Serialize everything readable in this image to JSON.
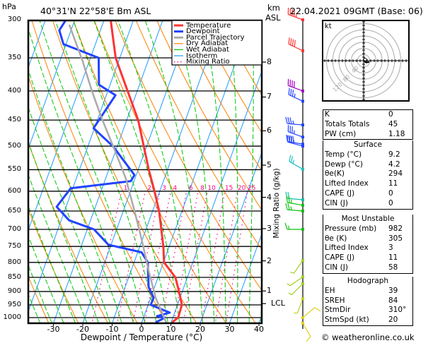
{
  "header": {
    "pressure_unit": "hPa",
    "location": "40°31'N 22°58'E Bm ASL",
    "km_label": "km",
    "asl_label": "ASL",
    "date": "22.04.2021 09GMT (Base: 06)"
  },
  "chart_data": {
    "type": "line",
    "title": "40°31'N 22°58'E Bm ASL",
    "xlabel": "Dewpoint / Temperature (°C)",
    "ylabel": "hPa",
    "y2label": "Mixing Ratio (g/kg)",
    "xlim": [
      -40,
      40
    ],
    "ylim": [
      1023,
      300
    ],
    "x_ticks": [
      "-30",
      "-20",
      "-10",
      "0",
      "10",
      "20",
      "30",
      "40"
    ],
    "x_tick_values": [
      -30,
      -20,
      -10,
      0,
      10,
      20,
      30,
      40
    ],
    "pressure_levels": [
      300,
      350,
      400,
      450,
      500,
      550,
      600,
      650,
      700,
      750,
      800,
      850,
      900,
      950,
      1000
    ],
    "pressure_labels": [
      "300",
      "350",
      "400",
      "450",
      "500",
      "550",
      "600",
      "650",
      "700",
      "750",
      "800",
      "850",
      "900",
      "950",
      "1000"
    ],
    "km_ticks": [
      {
        "label": "8",
        "p": 356
      },
      {
        "label": "7",
        "p": 410
      },
      {
        "label": "6",
        "p": 470
      },
      {
        "label": "5",
        "p": 540
      },
      {
        "label": "4",
        "p": 615
      },
      {
        "label": "3",
        "p": 698
      },
      {
        "label": "2",
        "p": 795
      },
      {
        "label": "1",
        "p": 898
      },
      {
        "label": "LCL",
        "p": 945
      }
    ],
    "legend": [
      {
        "label": "Temperature",
        "color": "#ff3333",
        "style": "thick"
      },
      {
        "label": "Dewpoint",
        "color": "#2244ff",
        "style": "thick"
      },
      {
        "label": "Parcel Trajectory",
        "color": "#aaaaaa",
        "style": "thick"
      },
      {
        "label": "Dry Adiabat",
        "color": "#ff8000",
        "style": "thin"
      },
      {
        "label": "Wet Adiabat",
        "color": "#00c800",
        "style": "thin"
      },
      {
        "label": "Isotherm",
        "color": "#1e9bff",
        "style": "thin"
      },
      {
        "label": "Mixing Ratio",
        "color": "#ff0080",
        "style": "dotted"
      }
    ],
    "legend_placement": "top-right",
    "mixing_ratio_labels": [
      "1",
      "2",
      "3",
      "4",
      "6",
      "8",
      "10",
      "15",
      "20",
      "25"
    ],
    "mixing_ratio_values": [
      1,
      2,
      3,
      4,
      6,
      8,
      10,
      15,
      20,
      25
    ],
    "series": [
      {
        "name": "Temperature",
        "color": "#ff3333",
        "points": [
          [
            1020,
            10.3
          ],
          [
            1000,
            11.8
          ],
          [
            950,
            11.5
          ],
          [
            900,
            8.9
          ],
          [
            850,
            5.9
          ],
          [
            800,
            0.2
          ],
          [
            750,
            -2.0
          ],
          [
            700,
            -4.8
          ],
          [
            650,
            -7.8
          ],
          [
            600,
            -11.8
          ],
          [
            550,
            -16.4
          ],
          [
            500,
            -21.0
          ],
          [
            450,
            -26.1
          ],
          [
            400,
            -33.3
          ],
          [
            350,
            -41.4
          ],
          [
            300,
            -47.8
          ]
        ]
      },
      {
        "name": "Dewpoint",
        "color": "#2244ff",
        "points": [
          [
            1020,
            4.7
          ],
          [
            1000,
            7.3
          ],
          [
            994,
            4.4
          ],
          [
            980,
            8.3
          ],
          [
            950,
            0.9
          ],
          [
            923,
            1.0
          ],
          [
            884,
            -2.0
          ],
          [
            826,
            -4.3
          ],
          [
            800,
            -5.3
          ],
          [
            768,
            -8.7
          ],
          [
            745,
            -20.9
          ],
          [
            700,
            -27.7
          ],
          [
            675,
            -37.3
          ],
          [
            639,
            -43.2
          ],
          [
            593,
            -40.7
          ],
          [
            576,
            -21.1
          ],
          [
            562,
            -20.6
          ],
          [
            501,
            -31.3
          ],
          [
            465,
            -40.3
          ],
          [
            407,
            -36.9
          ],
          [
            390,
            -43.8
          ],
          [
            350,
            -47.2
          ],
          [
            331,
            -60.9
          ],
          [
            313,
            -64.0
          ],
          [
            300,
            -63.0
          ]
        ]
      },
      {
        "name": "Parcel Trajectory",
        "color": "#aaaaaa",
        "points": [
          [
            1020,
            8.3
          ],
          [
            923,
            1.7
          ],
          [
            826,
            -4.1
          ],
          [
            752,
            -8.7
          ],
          [
            700,
            -12.3
          ],
          [
            628,
            -18.0
          ],
          [
            569,
            -23.2
          ],
          [
            501,
            -31.3
          ],
          [
            445,
            -39.0
          ],
          [
            401,
            -45.3
          ],
          [
            355,
            -52.2
          ],
          [
            306,
            -61.3
          ]
        ]
      }
    ],
    "wind_barbs": [
      {
        "p": 300,
        "dir": 290,
        "kt": 45,
        "color": "#ff3333"
      },
      {
        "p": 340,
        "dir": 295,
        "kt": 40,
        "color": "#ff3333"
      },
      {
        "p": 400,
        "dir": 290,
        "kt": 40,
        "color": "#a000c0"
      },
      {
        "p": 417,
        "dir": 295,
        "kt": 35,
        "color": "#2244ff"
      },
      {
        "p": 459,
        "dir": 275,
        "kt": 35,
        "color": "#2244ff"
      },
      {
        "p": 482,
        "dir": 290,
        "kt": 35,
        "color": "#2244ff"
      },
      {
        "p": 496,
        "dir": 280,
        "kt": 40,
        "color": "#2244ff"
      },
      {
        "p": 500,
        "dir": 285,
        "kt": 35,
        "color": "#2244ff"
      },
      {
        "p": 549,
        "dir": 300,
        "kt": 25,
        "color": "#20c0c0"
      },
      {
        "p": 621,
        "dir": 275,
        "kt": 20,
        "color": "#10c0a0"
      },
      {
        "p": 635,
        "dir": 280,
        "kt": 25,
        "color": "#10c010"
      },
      {
        "p": 650,
        "dir": 275,
        "kt": 25,
        "color": "#10c010"
      },
      {
        "p": 700,
        "dir": 270,
        "kt": 15,
        "color": "#10c010"
      },
      {
        "p": 794,
        "dir": 215,
        "kt": 5,
        "color": "#a0d020"
      },
      {
        "p": 848,
        "dir": 235,
        "kt": 5,
        "color": "#a0d020"
      },
      {
        "p": 872,
        "dir": 225,
        "kt": 5,
        "color": "#a0d020"
      },
      {
        "p": 926,
        "dir": 200,
        "kt": 5,
        "color": "#c0d020"
      },
      {
        "p": 1000,
        "dir": 50,
        "kt": 10,
        "color": "#e0d020"
      },
      {
        "p": 1023,
        "dir": 150,
        "kt": 10,
        "color": "#e0d020"
      }
    ],
    "hodograph": {
      "unit": "kt",
      "ring_labels": [
        "40",
        "80",
        "120"
      ],
      "ring_values": [
        40,
        80,
        120
      ],
      "trace_kt": [
        [
          0,
          0
        ],
        [
          3,
          -3
        ],
        [
          6,
          -5
        ],
        [
          10,
          -6
        ],
        [
          14,
          -5
        ],
        [
          18,
          -4
        ]
      ]
    }
  },
  "indices": {
    "rows": [
      {
        "label": "K",
        "value": "0"
      },
      {
        "label": "Totals Totals",
        "value": "45"
      },
      {
        "label": "PW (cm)",
        "value": "1.18"
      }
    ]
  },
  "surface": {
    "title": "Surface",
    "rows": [
      {
        "label": "Temp (°C)",
        "value": "9.2"
      },
      {
        "label": "Dewp (°C)",
        "value": "4.2"
      },
      {
        "label": "θe(K)",
        "value": "294"
      },
      {
        "label": "Lifted Index",
        "value": "11"
      },
      {
        "label": "CAPE (J)",
        "value": "0"
      },
      {
        "label": "CIN (J)",
        "value": "0"
      }
    ]
  },
  "most_unstable": {
    "title": "Most Unstable",
    "rows": [
      {
        "label": "Pressure (mb)",
        "value": "982"
      },
      {
        "label": "θe (K)",
        "value": "305"
      },
      {
        "label": "Lifted Index",
        "value": "3"
      },
      {
        "label": "CAPE (J)",
        "value": "11"
      },
      {
        "label": "CIN (J)",
        "value": "58"
      }
    ]
  },
  "hodograph_stats": {
    "title": "Hodograph",
    "rows": [
      {
        "label": "EH",
        "value": "39"
      },
      {
        "label": "SREH",
        "value": "84"
      },
      {
        "label": "StmDir",
        "value": "310°"
      },
      {
        "label": "StmSpd (kt)",
        "value": "20"
      }
    ]
  },
  "footer": {
    "copyright": "© weatheronline.co.uk"
  }
}
